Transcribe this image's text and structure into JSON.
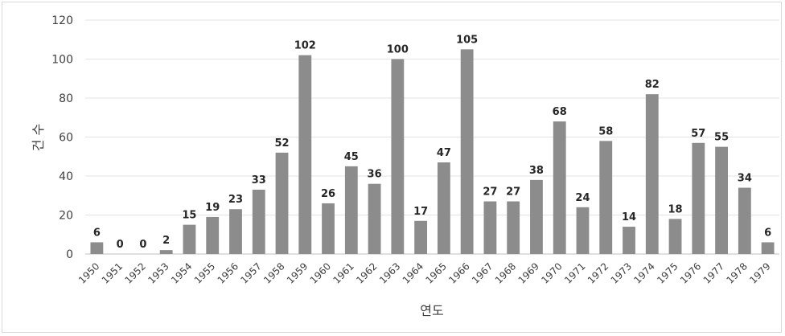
{
  "chart_data": {
    "type": "bar",
    "title": "",
    "xlabel": "연도",
    "ylabel": "건 수",
    "ylim": [
      0,
      120
    ],
    "yticks": [
      0,
      20,
      40,
      60,
      80,
      100,
      120
    ],
    "grid": true,
    "legend": "none",
    "bar_color": "#8c8c8c",
    "categories": [
      "1950",
      "1951",
      "1952",
      "1953",
      "1954",
      "1955",
      "1956",
      "1957",
      "1958",
      "1959",
      "1960",
      "1961",
      "1962",
      "1963",
      "1964",
      "1965",
      "1966",
      "1967",
      "1968",
      "1969",
      "1970",
      "1971",
      "1972",
      "1973",
      "1974",
      "1975",
      "1976",
      "1977",
      "1978",
      "1979"
    ],
    "values": [
      6,
      0,
      0,
      2,
      15,
      19,
      23,
      33,
      52,
      102,
      26,
      45,
      36,
      100,
      17,
      47,
      105,
      27,
      27,
      38,
      68,
      24,
      58,
      14,
      82,
      18,
      57,
      55,
      34,
      6
    ]
  }
}
